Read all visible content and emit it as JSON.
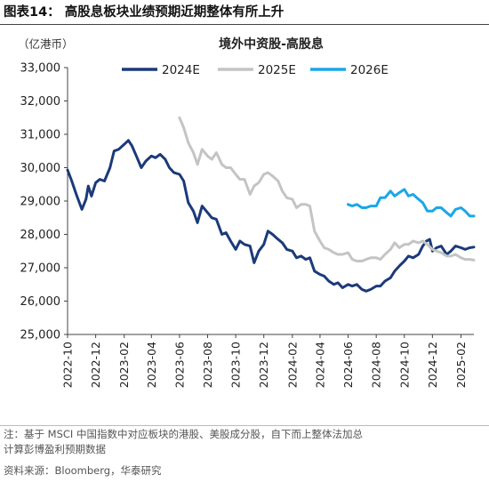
{
  "figure_title": "图表14：  高股息板块业绩预期近期整体有所上升",
  "notes": [
    "注：基于 MSCI 中国指数中对应板块的港股、美股成分股，自下而上整体法加总",
    "计算彭博盈利预期数据"
  ],
  "source": "资料来源：Bloomberg，华泰研究",
  "chart_data": {
    "type": "line",
    "title": "境外中资股-高股息",
    "unit_label": "（亿港币）",
    "ylim": [
      25000,
      33000
    ],
    "y_ticks": [
      25000,
      26000,
      27000,
      28000,
      29000,
      30000,
      31000,
      32000,
      33000
    ],
    "y_tick_labels": [
      "25,000",
      "26,000",
      "27,000",
      "28,000",
      "29,000",
      "30,000",
      "31,000",
      "32,000",
      "33,000"
    ],
    "x_tick_labels": [
      "2022-10",
      "2022-12",
      "2023-02",
      "2023-04",
      "2023-06",
      "2023-08",
      "2023-10",
      "2023-12",
      "2024-02",
      "2024-04",
      "2024-06",
      "2024-08",
      "2024-10",
      "2024-12",
      "2025-02"
    ],
    "x_range": [
      "2022-10",
      "2025-03"
    ],
    "legend_position": "top",
    "grid": false,
    "series": [
      {
        "name": "2024E",
        "color": "#1b3a7a",
        "points": [
          [
            "2022-10",
            29930
          ],
          [
            "2022-10-10",
            29600
          ],
          [
            "2022-10-20",
            29200
          ],
          [
            "2022-11-01",
            28750
          ],
          [
            "2022-11-10",
            29050
          ],
          [
            "2022-11-15",
            29450
          ],
          [
            "2022-11-22",
            29150
          ],
          [
            "2022-12-01",
            29550
          ],
          [
            "2022-12-10",
            29650
          ],
          [
            "2022-12-20",
            29600
          ],
          [
            "2023-01-01",
            30000
          ],
          [
            "2023-01-10",
            30500
          ],
          [
            "2023-01-20",
            30550
          ],
          [
            "2023-02-01",
            30700
          ],
          [
            "2023-02-10",
            30820
          ],
          [
            "2023-02-18",
            30650
          ],
          [
            "2023-03-01",
            30300
          ],
          [
            "2023-03-10",
            30000
          ],
          [
            "2023-03-20",
            30200
          ],
          [
            "2023-04-01",
            30350
          ],
          [
            "2023-04-10",
            30300
          ],
          [
            "2023-04-20",
            30400
          ],
          [
            "2023-05-01",
            30250
          ],
          [
            "2023-05-10",
            30000
          ],
          [
            "2023-05-20",
            29850
          ],
          [
            "2023-06-01",
            29800
          ],
          [
            "2023-06-10",
            29600
          ],
          [
            "2023-06-20",
            28950
          ],
          [
            "2023-07-01",
            28700
          ],
          [
            "2023-07-10",
            28350
          ],
          [
            "2023-07-20",
            28850
          ],
          [
            "2023-08-01",
            28650
          ],
          [
            "2023-08-10",
            28500
          ],
          [
            "2023-08-20",
            28450
          ],
          [
            "2023-09-01",
            28000
          ],
          [
            "2023-09-10",
            28050
          ],
          [
            "2023-09-20",
            27800
          ],
          [
            "2023-10-01",
            27550
          ],
          [
            "2023-10-10",
            27800
          ],
          [
            "2023-10-20",
            27700
          ],
          [
            "2023-11-01",
            27650
          ],
          [
            "2023-11-10",
            27150
          ],
          [
            "2023-11-20",
            27500
          ],
          [
            "2023-12-01",
            27700
          ],
          [
            "2023-12-10",
            28100
          ],
          [
            "2023-12-20",
            28000
          ],
          [
            "2024-01-01",
            27850
          ],
          [
            "2024-01-10",
            27750
          ],
          [
            "2024-01-20",
            27550
          ],
          [
            "2024-02-01",
            27500
          ],
          [
            "2024-02-10",
            27300
          ],
          [
            "2024-02-20",
            27350
          ],
          [
            "2024-03-01",
            27250
          ],
          [
            "2024-03-10",
            27300
          ],
          [
            "2024-03-20",
            26900
          ],
          [
            "2024-04-01",
            26800
          ],
          [
            "2024-04-10",
            26750
          ],
          [
            "2024-04-20",
            26600
          ],
          [
            "2024-05-01",
            26500
          ],
          [
            "2024-05-10",
            26550
          ],
          [
            "2024-05-20",
            26400
          ],
          [
            "2024-06-01",
            26500
          ],
          [
            "2024-06-10",
            26450
          ],
          [
            "2024-06-20",
            26500
          ],
          [
            "2024-07-01",
            26350
          ],
          [
            "2024-07-10",
            26300
          ],
          [
            "2024-07-20",
            26350
          ],
          [
            "2024-08-01",
            26450
          ],
          [
            "2024-08-10",
            26450
          ],
          [
            "2024-08-20",
            26600
          ],
          [
            "2024-09-01",
            26700
          ],
          [
            "2024-09-10",
            26900
          ],
          [
            "2024-09-20",
            27050
          ],
          [
            "2024-10-01",
            27200
          ],
          [
            "2024-10-10",
            27350
          ],
          [
            "2024-10-20",
            27300
          ],
          [
            "2024-11-01",
            27400
          ],
          [
            "2024-11-10",
            27650
          ],
          [
            "2024-11-18",
            27800
          ],
          [
            "2024-11-25",
            27850
          ],
          [
            "2024-12-01",
            27500
          ],
          [
            "2024-12-10",
            27600
          ],
          [
            "2024-12-20",
            27650
          ],
          [
            "2025-01-01",
            27400
          ],
          [
            "2025-01-10",
            27500
          ],
          [
            "2025-01-20",
            27650
          ],
          [
            "2025-02-01",
            27600
          ],
          [
            "2025-02-10",
            27550
          ],
          [
            "2025-02-20",
            27600
          ],
          [
            "2025-03-01",
            27620
          ]
        ]
      },
      {
        "name": "2025E",
        "color": "#c4c4c4",
        "points": [
          [
            "2023-06-01",
            31500
          ],
          [
            "2023-06-10",
            31200
          ],
          [
            "2023-06-20",
            30750
          ],
          [
            "2023-07-01",
            30450
          ],
          [
            "2023-07-10",
            30100
          ],
          [
            "2023-07-20",
            30550
          ],
          [
            "2023-08-01",
            30350
          ],
          [
            "2023-08-10",
            30250
          ],
          [
            "2023-08-20",
            30450
          ],
          [
            "2023-09-01",
            30100
          ],
          [
            "2023-09-10",
            30000
          ],
          [
            "2023-09-20",
            30000
          ],
          [
            "2023-10-01",
            29800
          ],
          [
            "2023-10-10",
            29650
          ],
          [
            "2023-10-20",
            29650
          ],
          [
            "2023-11-01",
            29200
          ],
          [
            "2023-11-10",
            29450
          ],
          [
            "2023-11-20",
            29550
          ],
          [
            "2023-12-01",
            29800
          ],
          [
            "2023-12-10",
            29850
          ],
          [
            "2023-12-20",
            29750
          ],
          [
            "2024-01-01",
            29600
          ],
          [
            "2024-01-10",
            29300
          ],
          [
            "2024-01-20",
            29100
          ],
          [
            "2024-02-01",
            29050
          ],
          [
            "2024-02-10",
            28800
          ],
          [
            "2024-02-20",
            28900
          ],
          [
            "2024-03-01",
            28900
          ],
          [
            "2024-03-10",
            28850
          ],
          [
            "2024-03-20",
            28100
          ],
          [
            "2024-04-01",
            27800
          ],
          [
            "2024-04-10",
            27600
          ],
          [
            "2024-04-20",
            27550
          ],
          [
            "2024-05-01",
            27450
          ],
          [
            "2024-05-10",
            27400
          ],
          [
            "2024-05-20",
            27400
          ],
          [
            "2024-06-01",
            27450
          ],
          [
            "2024-06-10",
            27250
          ],
          [
            "2024-06-20",
            27200
          ],
          [
            "2024-07-01",
            27200
          ],
          [
            "2024-07-10",
            27250
          ],
          [
            "2024-07-20",
            27300
          ],
          [
            "2024-08-01",
            27300
          ],
          [
            "2024-08-10",
            27250
          ],
          [
            "2024-08-20",
            27400
          ],
          [
            "2024-09-01",
            27550
          ],
          [
            "2024-09-10",
            27750
          ],
          [
            "2024-09-20",
            27600
          ],
          [
            "2024-10-01",
            27700
          ],
          [
            "2024-10-10",
            27700
          ],
          [
            "2024-10-20",
            27800
          ],
          [
            "2024-11-01",
            27750
          ],
          [
            "2024-11-10",
            27800
          ],
          [
            "2024-11-20",
            27700
          ],
          [
            "2024-12-01",
            27550
          ],
          [
            "2024-12-10",
            27500
          ],
          [
            "2024-12-20",
            27450
          ],
          [
            "2025-01-01",
            27350
          ],
          [
            "2025-01-10",
            27350
          ],
          [
            "2025-01-20",
            27400
          ],
          [
            "2025-02-01",
            27300
          ],
          [
            "2025-02-10",
            27250
          ],
          [
            "2025-02-20",
            27250
          ],
          [
            "2025-03-01",
            27230
          ]
        ]
      },
      {
        "name": "2026E",
        "color": "#1aa7e8",
        "points": [
          [
            "2024-06-01",
            28900
          ],
          [
            "2024-06-10",
            28850
          ],
          [
            "2024-06-20",
            28900
          ],
          [
            "2024-07-01",
            28800
          ],
          [
            "2024-07-10",
            28800
          ],
          [
            "2024-07-20",
            28850
          ],
          [
            "2024-08-01",
            28850
          ],
          [
            "2024-08-10",
            29100
          ],
          [
            "2024-08-20",
            29100
          ],
          [
            "2024-09-01",
            29300
          ],
          [
            "2024-09-10",
            29150
          ],
          [
            "2024-09-20",
            29250
          ],
          [
            "2024-10-01",
            29350
          ],
          [
            "2024-10-10",
            29150
          ],
          [
            "2024-10-20",
            29200
          ],
          [
            "2024-11-01",
            29050
          ],
          [
            "2024-11-10",
            28950
          ],
          [
            "2024-11-20",
            28700
          ],
          [
            "2024-12-01",
            28700
          ],
          [
            "2024-12-10",
            28800
          ],
          [
            "2024-12-20",
            28800
          ],
          [
            "2025-01-01",
            28650
          ],
          [
            "2025-01-10",
            28550
          ],
          [
            "2025-01-20",
            28750
          ],
          [
            "2025-02-01",
            28800
          ],
          [
            "2025-02-10",
            28700
          ],
          [
            "2025-02-20",
            28550
          ],
          [
            "2025-03-01",
            28550
          ]
        ]
      }
    ]
  }
}
